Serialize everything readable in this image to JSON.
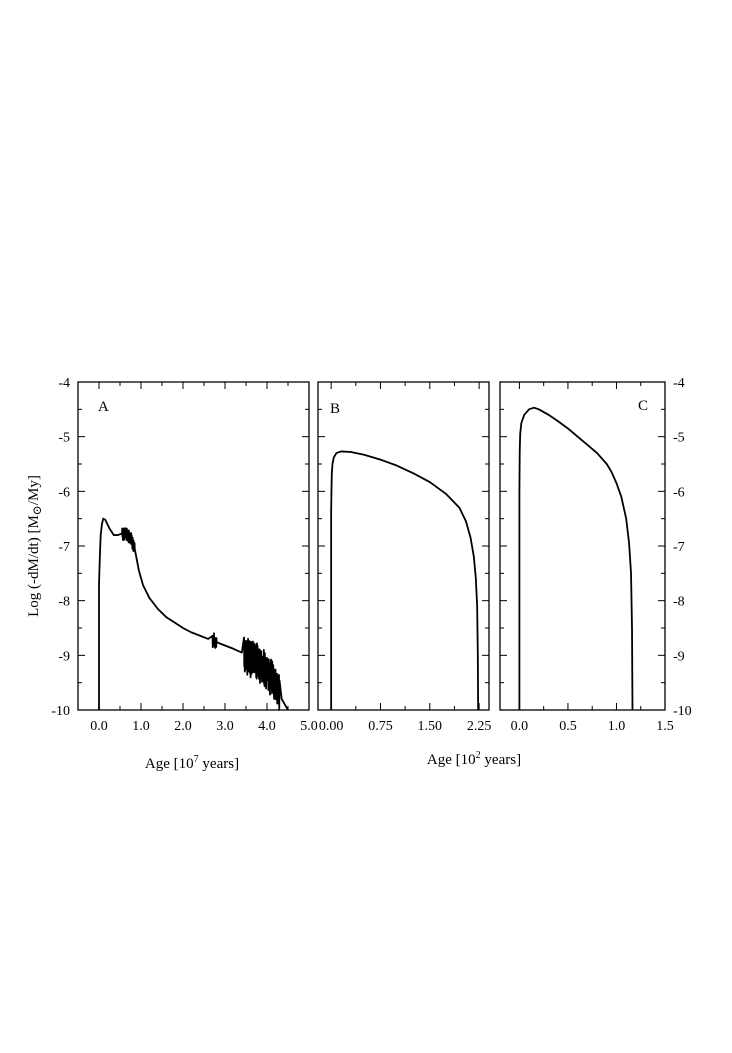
{
  "chart_data": [
    {
      "type": "line",
      "panel_label": "A",
      "xlabel": "Age [10",
      "xlabel_sup": "7",
      "xlabel_rest": " years]",
      "ylabel": "Log (-dM/dt) [M",
      "ylabel_sub": "⊙",
      "ylabel_rest": "/My]",
      "xlim": [
        -0.5,
        5.0
      ],
      "ylim": [
        -10,
        -4
      ],
      "x_ticks": [
        "0.0",
        "1.0",
        "2.0",
        "3.0",
        "4.0",
        "5.0"
      ],
      "y_ticks": [
        "-4",
        "-5",
        "-6",
        "-7",
        "-8",
        "-9",
        "-10"
      ],
      "series": [
        {
          "x": [
            0.0,
            0.0,
            0.02,
            0.04,
            0.07,
            0.1,
            0.15,
            0.25,
            0.35,
            0.45,
            0.55,
            0.65,
            0.75,
            0.85,
            0.95,
            1.05,
            1.2,
            1.4,
            1.6,
            1.8,
            2.0,
            2.2,
            2.4,
            2.6,
            2.8,
            3.0,
            3.2,
            3.4,
            3.6,
            3.8,
            4.0,
            4.2,
            4.35,
            4.5
          ],
          "y": [
            -10.0,
            -7.7,
            -7.2,
            -6.8,
            -6.6,
            -6.5,
            -6.52,
            -6.68,
            -6.8,
            -6.8,
            -6.77,
            -6.78,
            -6.85,
            -7.05,
            -7.45,
            -7.72,
            -7.95,
            -8.15,
            -8.3,
            -8.4,
            -8.5,
            -8.58,
            -8.64,
            -8.7,
            -8.76,
            -8.82,
            -8.88,
            -8.95,
            -9.05,
            -9.15,
            -9.3,
            -9.55,
            -9.8,
            -10.0
          ]
        }
      ],
      "noise_regions": [
        {
          "x": [
            0.55,
            0.85
          ],
          "amp": 0.12
        },
        {
          "x": [
            2.7,
            2.8
          ],
          "amp": 0.15
        },
        {
          "x": [
            3.45,
            4.3
          ],
          "amp": 0.35
        }
      ]
    },
    {
      "type": "line",
      "panel_label": "B",
      "xlabel": "Age [10",
      "xlabel_sup": "2",
      "xlabel_rest": " years]",
      "xlim": [
        -0.2,
        2.4
      ],
      "ylim": [
        -10,
        -4
      ],
      "x_ticks": [
        "0.00",
        "0.75",
        "1.50",
        "2.25"
      ],
      "series": [
        {
          "x": [
            0.0,
            0.0,
            0.005,
            0.01,
            0.02,
            0.04,
            0.08,
            0.15,
            0.3,
            0.5,
            0.75,
            1.0,
            1.25,
            1.5,
            1.75,
            1.95,
            2.05,
            2.12,
            2.17,
            2.2,
            2.22,
            2.23,
            2.235
          ],
          "y": [
            -10.0,
            -6.4,
            -5.95,
            -5.68,
            -5.5,
            -5.38,
            -5.3,
            -5.27,
            -5.28,
            -5.33,
            -5.42,
            -5.53,
            -5.67,
            -5.83,
            -6.05,
            -6.3,
            -6.55,
            -6.85,
            -7.2,
            -7.6,
            -8.1,
            -9.0,
            -10.0
          ]
        }
      ]
    },
    {
      "type": "line",
      "panel_label": "C",
      "xlim": [
        -0.2,
        1.5
      ],
      "ylim": [
        -10,
        -4
      ],
      "x_ticks": [
        "0.0",
        "0.5",
        "1.0",
        "1.5"
      ],
      "y_ticks": [
        "-4",
        "-5",
        "-6",
        "-7",
        "-8",
        "-9",
        "-10"
      ],
      "series": [
        {
          "x": [
            0.0,
            0.0,
            0.003,
            0.008,
            0.02,
            0.05,
            0.1,
            0.15,
            0.2,
            0.3,
            0.4,
            0.5,
            0.6,
            0.7,
            0.8,
            0.9,
            0.95,
            1.0,
            1.05,
            1.1,
            1.13,
            1.15,
            1.16,
            1.165
          ],
          "y": [
            -10.0,
            -6.0,
            -5.3,
            -4.95,
            -4.75,
            -4.6,
            -4.5,
            -4.47,
            -4.5,
            -4.6,
            -4.72,
            -4.85,
            -5.0,
            -5.15,
            -5.3,
            -5.5,
            -5.65,
            -5.85,
            -6.1,
            -6.5,
            -6.95,
            -7.5,
            -8.5,
            -10.0
          ]
        }
      ]
    }
  ]
}
